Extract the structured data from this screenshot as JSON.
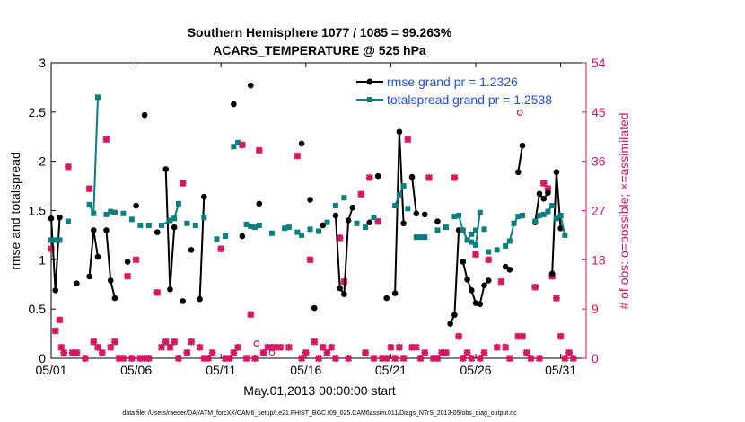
{
  "chart_data": {
    "type": "line",
    "title_line1": "Southern Hemisphere 1077 / 1085 = 99.263%",
    "title_line2": "ACARS_TEMPERATURE @ 525 hPa",
    "xlabel": "May.01,2013 00:00:00 start",
    "ylabel_left": "rmse and totalspread",
    "ylabel_right": "# of obs: o=possible; ×=assimilated",
    "xlim": [
      0,
      31.5
    ],
    "ylim_left": [
      0,
      3
    ],
    "ylim_right": [
      0,
      54
    ],
    "x_ticks": [
      0,
      5,
      10,
      15,
      20,
      25,
      30
    ],
    "x_tick_labels": [
      "05/01",
      "05/06",
      "05/11",
      "05/16",
      "05/21",
      "05/26",
      "05/31"
    ],
    "y_left_ticks": [
      "0",
      "0.5",
      "1",
      "1.5",
      "2",
      "2.5",
      "3"
    ],
    "y_right_ticks": [
      "0",
      "9",
      "18",
      "27",
      "36",
      "45",
      "54"
    ],
    "legend": [
      "rmse grand pr = 1.2326",
      "totalspread grand pr = 1.2538"
    ],
    "footnote": "data file: /Users/raeder/DAI/ATM_forcXX/CAM6_setup/f.e21.FHIST_BGC.f09_025.CAM6assim.011/Diags_NTrS_2013-05/obs_diag_output.nc",
    "colors": {
      "rmse": "#000000",
      "spread": "#0a7f7f",
      "obs": "#d6165e",
      "legend_text": "#1f4fff"
    },
    "series": [
      {
        "name": "rmse",
        "points": [
          [
            0.0,
            1.42
          ],
          [
            0.25,
            0.69
          ],
          [
            0.5,
            1.43
          ],
          [
            null,
            null
          ],
          [
            1.5,
            0.76
          ],
          [
            null,
            null
          ],
          [
            2.25,
            0.83
          ],
          [
            2.5,
            1.3
          ],
          [
            2.75,
            1.03
          ],
          [
            null,
            null
          ],
          [
            3.25,
            1.3
          ],
          [
            3.5,
            0.79
          ],
          [
            3.75,
            0.61
          ],
          [
            null,
            null
          ],
          [
            4.5,
            0.98
          ],
          [
            null,
            null
          ],
          [
            5.0,
            1.55
          ],
          [
            null,
            null
          ],
          [
            5.5,
            2.47
          ],
          [
            null,
            null
          ],
          [
            6.25,
            1.28
          ],
          [
            null,
            null
          ],
          [
            6.75,
            1.92
          ],
          [
            7.0,
            0.7
          ],
          [
            7.25,
            1.33
          ],
          [
            null,
            null
          ],
          [
            7.75,
            0.58
          ],
          [
            null,
            null
          ],
          [
            8.25,
            1.1
          ],
          [
            null,
            null
          ],
          [
            8.75,
            0.6
          ],
          [
            9.0,
            1.64
          ],
          [
            null,
            null
          ],
          [
            10.75,
            2.58
          ],
          [
            null,
            null
          ],
          [
            11.25,
            1.24
          ],
          [
            null,
            null
          ],
          [
            11.75,
            2.77
          ],
          [
            null,
            null
          ],
          [
            12.25,
            1.57
          ],
          [
            null,
            null
          ],
          [
            14.75,
            2.18
          ],
          [
            null,
            null
          ],
          [
            15.25,
            1.61
          ],
          [
            null,
            null
          ],
          [
            15.5,
            0.51
          ],
          [
            null,
            null
          ],
          [
            16.0,
            1.35
          ],
          [
            null,
            null
          ],
          [
            16.75,
            1.45
          ],
          [
            17.0,
            0.71
          ],
          [
            17.25,
            0.65
          ],
          [
            17.5,
            1.4
          ],
          [
            17.75,
            1.53
          ],
          [
            null,
            null
          ],
          [
            18.75,
            1.38
          ],
          [
            null,
            null
          ],
          [
            19.25,
            1.85
          ],
          [
            null,
            null
          ],
          [
            19.75,
            0.61
          ],
          [
            null,
            null
          ],
          [
            20.25,
            0.66
          ],
          [
            20.5,
            2.3
          ],
          [
            20.75,
            1.37
          ],
          [
            null,
            null
          ],
          [
            21.25,
            1.84
          ],
          [
            21.5,
            1.47
          ],
          [
            null,
            null
          ],
          [
            22.0,
            1.46
          ],
          [
            null,
            null
          ],
          [
            22.75,
            1.39
          ],
          [
            null,
            null
          ],
          [
            23.5,
            0.35
          ],
          [
            23.75,
            0.44
          ],
          [
            24.0,
            1.3
          ],
          [
            null,
            null
          ],
          [
            24.25,
            0.98
          ],
          [
            24.5,
            0.8
          ],
          [
            24.75,
            0.69
          ],
          [
            25.0,
            0.56
          ],
          [
            25.25,
            0.55
          ],
          [
            25.5,
            0.74
          ],
          [
            25.75,
            0.79
          ],
          [
            null,
            null
          ],
          [
            26.75,
            0.93
          ],
          [
            27.0,
            0.9
          ],
          [
            null,
            null
          ],
          [
            27.5,
            1.89
          ],
          [
            27.75,
            2.16
          ],
          [
            null,
            null
          ],
          [
            28.5,
            1.38
          ],
          [
            28.75,
            1.67
          ],
          [
            29.0,
            1.62
          ],
          [
            29.25,
            1.68
          ],
          [
            null,
            null
          ],
          [
            29.5,
            0.86
          ],
          [
            29.75,
            1.89
          ],
          [
            30.0,
            1.32
          ],
          [
            null,
            null
          ]
        ]
      },
      {
        "name": "totalspread",
        "points": [
          [
            0.0,
            1.2
          ],
          [
            0.25,
            1.2
          ],
          [
            0.5,
            1.2
          ],
          [
            null,
            null
          ],
          [
            1.0,
            1.39
          ],
          [
            null,
            null
          ],
          [
            2.25,
            1.56
          ],
          [
            2.5,
            1.47
          ],
          [
            2.75,
            2.65
          ],
          [
            null,
            null
          ],
          [
            3.25,
            1.46
          ],
          [
            3.5,
            1.49
          ],
          [
            3.75,
            1.48
          ],
          [
            null,
            null
          ],
          [
            4.25,
            1.47
          ],
          [
            null,
            null
          ],
          [
            4.75,
            1.41
          ],
          [
            null,
            null
          ],
          [
            5.25,
            1.35
          ],
          [
            null,
            null
          ],
          [
            5.75,
            1.35
          ],
          [
            null,
            null
          ],
          [
            6.5,
            1.35
          ],
          [
            7.0,
            1.4
          ],
          [
            7.25,
            1.42
          ],
          [
            7.5,
            1.57
          ],
          [
            null,
            null
          ],
          [
            8.0,
            1.37
          ],
          [
            null,
            null
          ],
          [
            8.5,
            1.35
          ],
          [
            null,
            null
          ],
          [
            9.0,
            1.43
          ],
          [
            null,
            null
          ],
          [
            9.75,
            1.21
          ],
          [
            null,
            null
          ],
          [
            10.25,
            1.24
          ],
          [
            null,
            null
          ],
          [
            10.75,
            2.15
          ],
          [
            11.0,
            2.19
          ],
          [
            null,
            null
          ],
          [
            11.5,
            1.36
          ],
          [
            11.75,
            1.34
          ],
          [
            12.0,
            1.33
          ],
          [
            12.25,
            1.35
          ],
          [
            null,
            null
          ],
          [
            13.0,
            1.27
          ],
          [
            null,
            null
          ],
          [
            13.75,
            1.32
          ],
          [
            14.0,
            1.33
          ],
          [
            null,
            null
          ],
          [
            14.5,
            1.28
          ],
          [
            null,
            null
          ],
          [
            14.75,
            1.25
          ],
          [
            null,
            null
          ],
          [
            15.25,
            1.31
          ],
          [
            null,
            null
          ],
          [
            15.75,
            1.29
          ],
          [
            null,
            null
          ],
          [
            16.25,
            1.38
          ],
          [
            null,
            null
          ],
          [
            16.75,
            1.55
          ],
          [
            null,
            null
          ],
          [
            17.25,
            1.63
          ],
          [
            null,
            null
          ],
          [
            18.0,
            1.37
          ],
          [
            null,
            null
          ],
          [
            18.5,
            1.33
          ],
          [
            null,
            null
          ],
          [
            19.0,
            1.43
          ],
          [
            null,
            null
          ],
          [
            20.25,
            1.55
          ],
          [
            20.5,
            1.66
          ],
          [
            20.75,
            1.75
          ],
          [
            null,
            null
          ],
          [
            21.0,
            1.52
          ],
          [
            null,
            null
          ],
          [
            21.5,
            1.23
          ],
          [
            21.75,
            1.23
          ],
          [
            22.0,
            1.23
          ],
          [
            null,
            null
          ],
          [
            22.75,
            1.3
          ],
          [
            null,
            null
          ],
          [
            23.25,
            1.33
          ],
          [
            null,
            null
          ],
          [
            23.75,
            1.44
          ],
          [
            24.0,
            1.45
          ],
          [
            24.25,
            1.3
          ],
          [
            24.5,
            1.2
          ],
          [
            24.75,
            1.26
          ],
          [
            25.0,
            1.3
          ],
          [
            null,
            null
          ],
          [
            24.75,
            1.18
          ],
          [
            25.0,
            1.15
          ],
          [
            25.25,
            1.48
          ],
          [
            null,
            null
          ],
          [
            25.5,
            1.31
          ],
          [
            null,
            null
          ],
          [
            25.75,
            1.08
          ],
          [
            null,
            null
          ],
          [
            26.25,
            1.1
          ],
          [
            null,
            null
          ],
          [
            26.75,
            1.14
          ],
          [
            null,
            null
          ],
          [
            27.0,
            1.19
          ],
          [
            27.25,
            1.37
          ],
          [
            27.5,
            1.44
          ],
          [
            27.75,
            1.45
          ],
          [
            null,
            null
          ],
          [
            28.5,
            1.39
          ],
          [
            28.75,
            1.45
          ],
          [
            29.0,
            1.46
          ],
          [
            29.25,
            1.49
          ],
          [
            29.5,
            1.55
          ],
          [
            null,
            null
          ],
          [
            29.75,
            1.42
          ],
          [
            30.0,
            1.45
          ],
          [
            30.25,
            1.25
          ],
          [
            null,
            null
          ]
        ]
      }
    ],
    "obs_possible": [
      [
        12.1,
        2.7
      ],
      [
        27.6,
        44.9
      ],
      [
        27.75,
        4.0
      ],
      [
        13.0,
        1.0
      ]
    ],
    "obs_assimilated": [
      [
        0.0,
        20
      ],
      [
        0.25,
        5
      ],
      [
        0.5,
        7
      ],
      [
        0.6,
        2
      ],
      [
        0.75,
        1
      ],
      [
        1.0,
        35
      ],
      [
        1.25,
        1
      ],
      [
        1.5,
        1
      ],
      [
        2.0,
        0
      ],
      [
        2.25,
        31
      ],
      [
        2.5,
        3
      ],
      [
        2.75,
        2
      ],
      [
        3.0,
        1
      ],
      [
        3.25,
        40
      ],
      [
        3.5,
        2
      ],
      [
        3.75,
        3
      ],
      [
        4.0,
        0
      ],
      [
        4.25,
        0
      ],
      [
        4.5,
        15
      ],
      [
        4.75,
        0
      ],
      [
        5.0,
        18
      ],
      [
        5.25,
        0
      ],
      [
        5.5,
        0
      ],
      [
        5.75,
        0
      ],
      [
        6.25,
        12
      ],
      [
        6.5,
        2
      ],
      [
        6.75,
        3
      ],
      [
        7.0,
        2
      ],
      [
        7.25,
        3
      ],
      [
        7.5,
        0
      ],
      [
        7.75,
        32
      ],
      [
        8.0,
        1
      ],
      [
        8.25,
        3
      ],
      [
        8.75,
        2
      ],
      [
        9.0,
        0
      ],
      [
        9.25,
        0
      ],
      [
        9.5,
        1
      ],
      [
        10.0,
        20
      ],
      [
        10.25,
        0
      ],
      [
        10.5,
        0
      ],
      [
        10.75,
        1
      ],
      [
        11.0,
        2
      ],
      [
        11.25,
        39
      ],
      [
        11.5,
        0
      ],
      [
        11.75,
        8
      ],
      [
        12.0,
        0
      ],
      [
        12.25,
        38
      ],
      [
        12.5,
        1
      ],
      [
        12.75,
        2
      ],
      [
        13.0,
        2
      ],
      [
        13.25,
        2
      ],
      [
        13.5,
        2
      ],
      [
        14.0,
        2
      ],
      [
        14.5,
        37
      ],
      [
        14.75,
        0
      ],
      [
        15.0,
        1
      ],
      [
        15.25,
        18
      ],
      [
        15.5,
        3
      ],
      [
        15.75,
        0
      ],
      [
        16.0,
        2
      ],
      [
        16.25,
        1
      ],
      [
        16.5,
        2
      ],
      [
        16.75,
        0
      ],
      [
        17.0,
        22
      ],
      [
        17.25,
        14
      ],
      [
        17.5,
        0
      ],
      [
        18.25,
        30
      ],
      [
        18.5,
        1
      ],
      [
        18.75,
        33
      ],
      [
        19.0,
        0
      ],
      [
        19.25,
        25
      ],
      [
        19.5,
        0
      ],
      [
        19.75,
        0
      ],
      [
        20.0,
        2
      ],
      [
        20.25,
        0
      ],
      [
        20.5,
        2
      ],
      [
        20.75,
        0
      ],
      [
        21.0,
        40
      ],
      [
        21.25,
        2
      ],
      [
        21.5,
        2
      ],
      [
        21.75,
        0
      ],
      [
        22.0,
        1
      ],
      [
        22.25,
        33
      ],
      [
        22.5,
        0
      ],
      [
        22.75,
        0
      ],
      [
        23.0,
        1
      ],
      [
        23.25,
        1
      ],
      [
        23.75,
        33
      ],
      [
        24.0,
        4
      ],
      [
        24.25,
        0
      ],
      [
        24.5,
        1
      ],
      [
        24.75,
        0
      ],
      [
        25.0,
        19
      ],
      [
        25.25,
        0
      ],
      [
        25.5,
        1
      ],
      [
        25.75,
        18
      ],
      [
        26.25,
        2
      ],
      [
        26.5,
        14
      ],
      [
        26.75,
        2
      ],
      [
        27.0,
        0
      ],
      [
        27.5,
        4
      ],
      [
        27.75,
        4
      ],
      [
        28.0,
        1
      ],
      [
        28.25,
        0
      ],
      [
        28.5,
        13
      ],
      [
        28.75,
        0
      ],
      [
        29.0,
        32
      ],
      [
        29.25,
        31
      ],
      [
        29.5,
        15
      ],
      [
        29.75,
        11
      ],
      [
        30.0,
        4
      ],
      [
        30.25,
        0
      ],
      [
        30.5,
        1
      ],
      [
        30.75,
        0
      ]
    ]
  }
}
